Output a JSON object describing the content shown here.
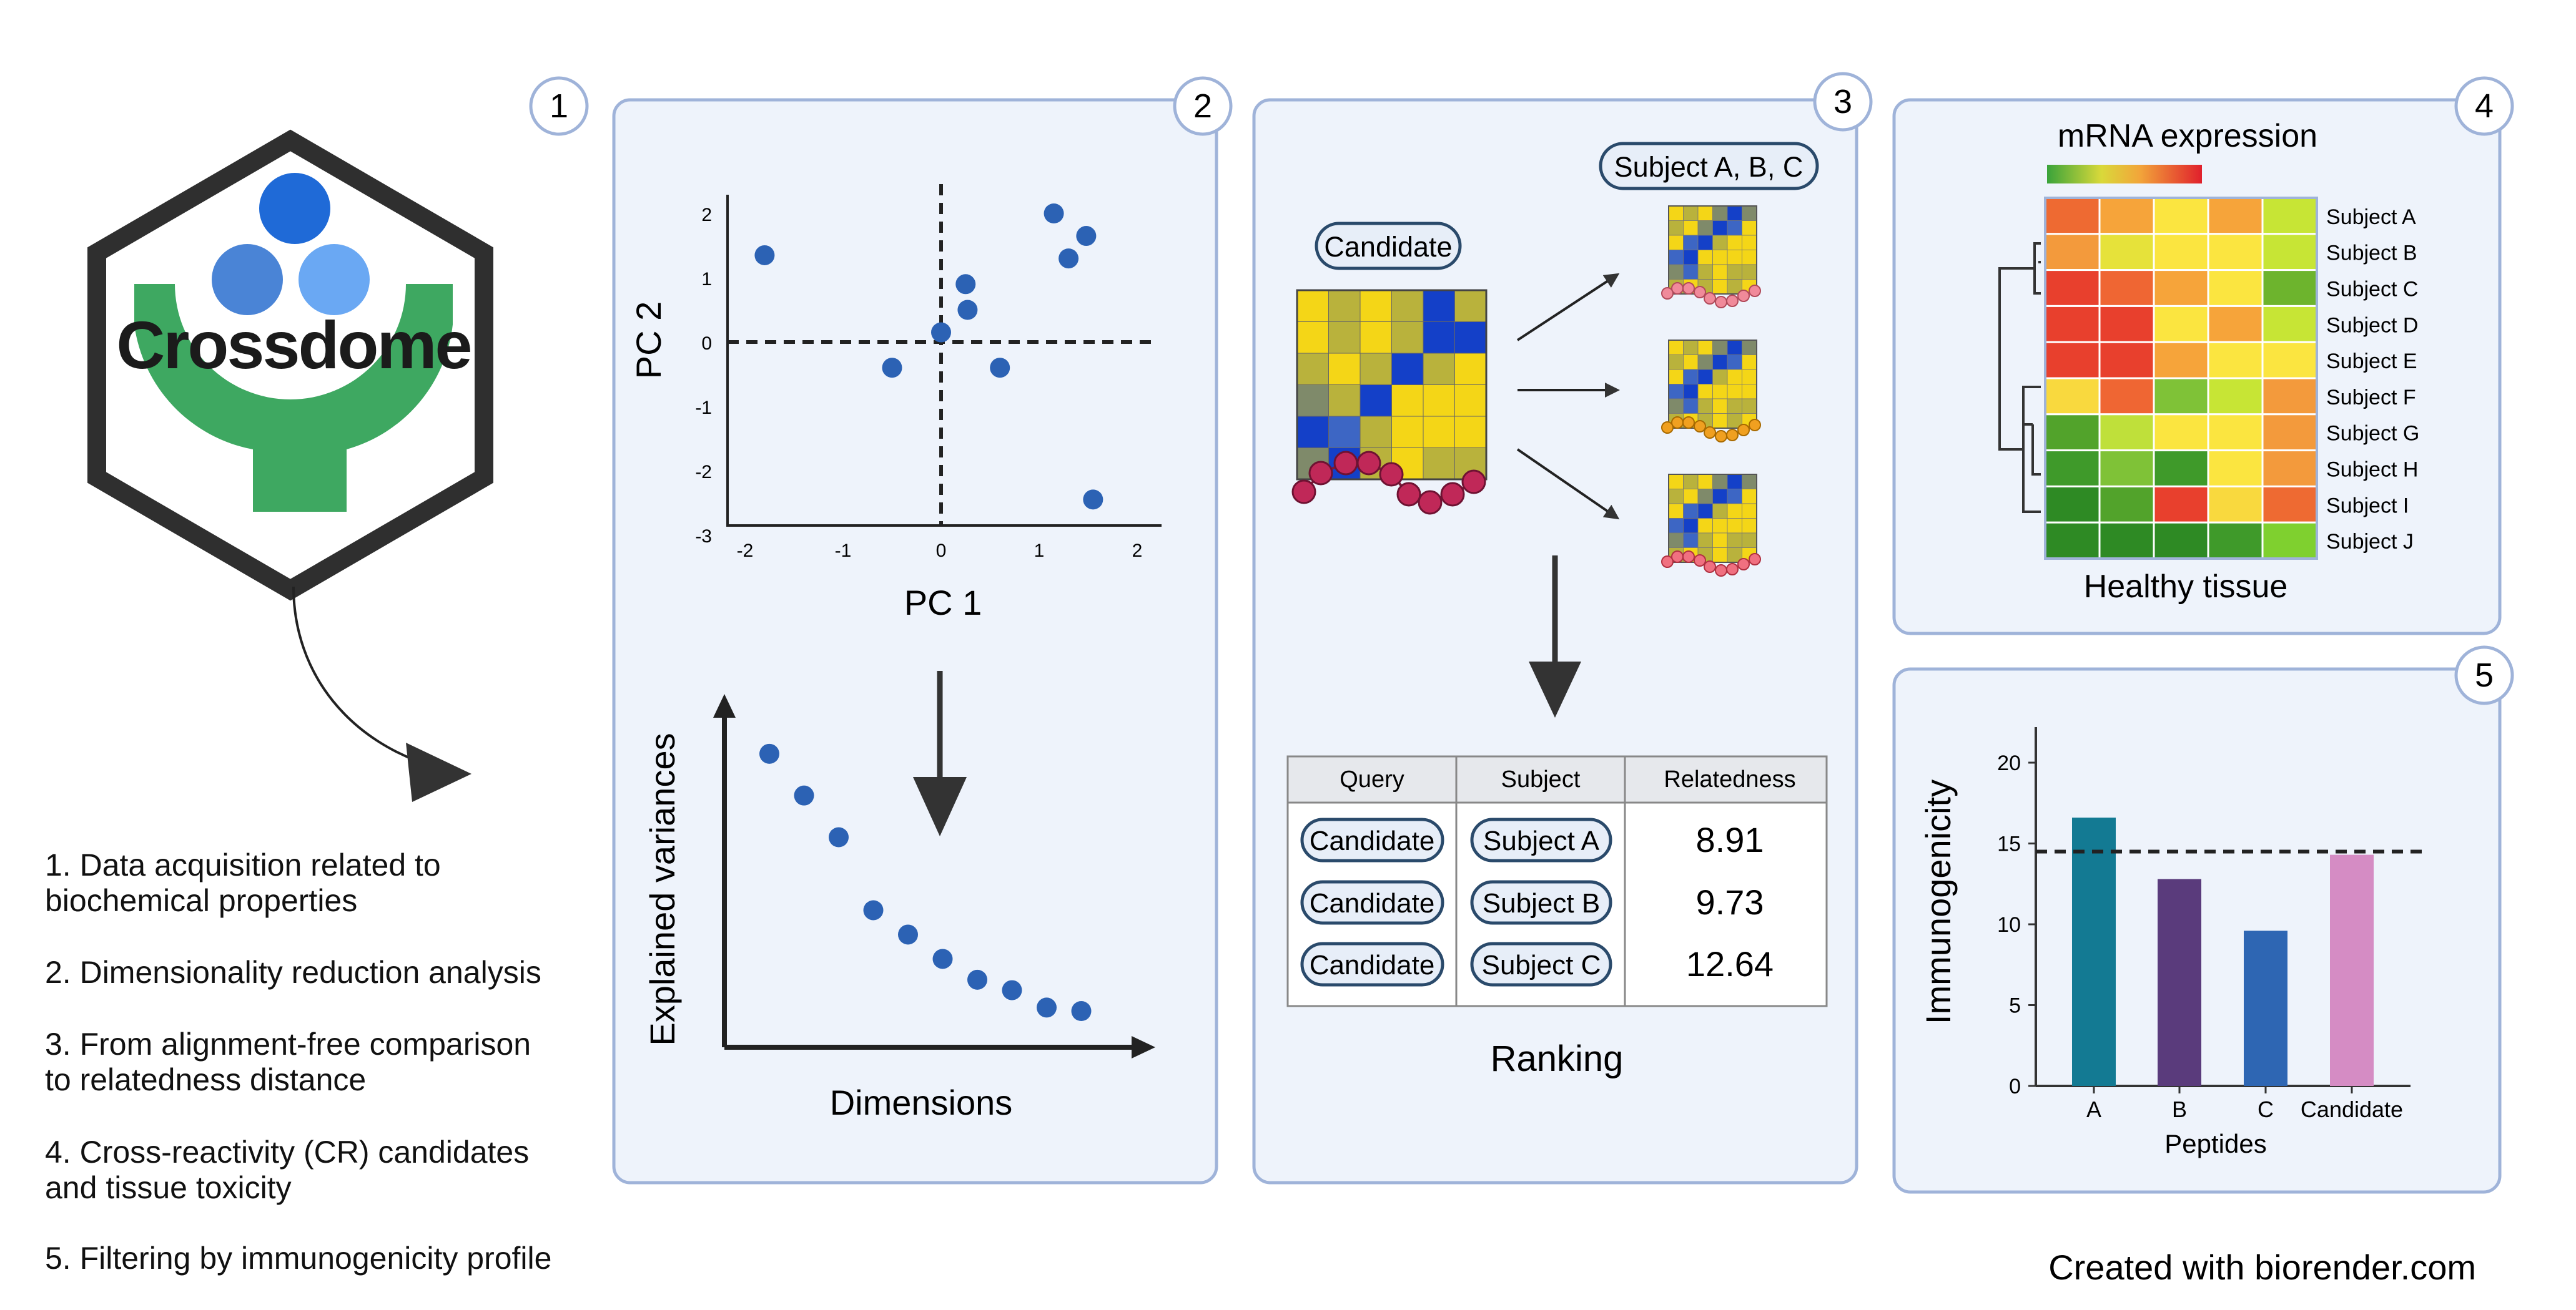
{
  "logo": {
    "name": "Crossdome"
  },
  "steps": [
    {
      "label": "1. Data acquisition related to",
      "label2": "biochemical properties"
    },
    {
      "label": "2. Dimensionality reduction analysis",
      "label2": ""
    },
    {
      "label": "3. From alignment-free comparison",
      "label2": "to relatedness distance"
    },
    {
      "label": "4. Cross-reactivity (CR) candidates",
      "label2": "and tissue toxicity"
    },
    {
      "label": "5. Filtering by immunogenicity profile",
      "label2": ""
    }
  ],
  "panel_numbers": [
    "1",
    "2",
    "3",
    "4",
    "5"
  ],
  "pca": {
    "xlabel": "PC 1",
    "ylabel": "PC 2",
    "x_ticks": [
      "-2",
      "-1",
      "0",
      "1",
      "2"
    ],
    "y_ticks": [
      "2",
      "1",
      "0",
      "-1",
      "-2",
      "-3"
    ],
    "points": [
      [
        -1.8,
        1.35
      ],
      [
        -0.5,
        -0.4
      ],
      [
        0.0,
        0.15
      ],
      [
        0.25,
        0.9
      ],
      [
        0.27,
        0.5
      ],
      [
        0.6,
        -0.4
      ],
      [
        1.15,
        2.0
      ],
      [
        1.3,
        1.3
      ],
      [
        1.48,
        1.65
      ],
      [
        1.55,
        -2.45
      ]
    ]
  },
  "scree": {
    "xlabel": "Dimensions",
    "ylabel": "Explained variances",
    "values": [
      10.0,
      8.8,
      7.6,
      5.5,
      4.8,
      4.1,
      3.5,
      3.2,
      2.7,
      2.6
    ]
  },
  "similarity": {
    "candidate_label": "Candidate",
    "subjects_label": "Subject A, B, C",
    "ranking_label": "Ranking",
    "colors": {
      "yellow": "#f4d617",
      "olive": "#b9b23c",
      "blue": "#1440c8",
      "midblue": "#3d66c4",
      "gray": "#7f8a6a"
    }
  },
  "table": {
    "headers": [
      "Query",
      "Subject",
      "Relatedness"
    ],
    "rows": [
      {
        "query": "Candidate",
        "subject": "Subject A",
        "value": "8.91"
      },
      {
        "query": "Candidate",
        "subject": "Subject B",
        "value": "9.73"
      },
      {
        "query": "Candidate",
        "subject": "Subject C",
        "value": "12.64"
      }
    ]
  },
  "heatmap": {
    "title": "mRNA expression",
    "footer": "Healthy tissue",
    "rows": [
      "Subject A",
      "Subject B",
      "Subject C",
      "Subject D",
      "Subject E",
      "Subject F",
      "Subject G",
      "Subject H",
      "Subject I",
      "Subject J"
    ],
    "cells": [
      [
        "#ee6a32",
        "#f6a43a",
        "#fbe540",
        "#f6a43a",
        "#c7e535"
      ],
      [
        "#f39a3c",
        "#e6e23a",
        "#fbe540",
        "#fbe540",
        "#c7e535"
      ],
      [
        "#e8402d",
        "#ef6633",
        "#f6a43a",
        "#fbe540",
        "#6db42d"
      ],
      [
        "#e8402d",
        "#e8402d",
        "#fbe540",
        "#f6a43a",
        "#c7e535"
      ],
      [
        "#e8402d",
        "#e8402d",
        "#f6a43a",
        "#fbe540",
        "#fbe540"
      ],
      [
        "#f9d93e",
        "#ef6633",
        "#7fc237",
        "#c7e535",
        "#f39a3c"
      ],
      [
        "#52a32b",
        "#bfe03a",
        "#fbe540",
        "#fbe540",
        "#f39a3c"
      ],
      [
        "#3f9a2a",
        "#7fc237",
        "#3f9a2a",
        "#fbe540",
        "#f39a3c"
      ],
      [
        "#2e8a24",
        "#52a32b",
        "#e8402d",
        "#f9d93e",
        "#ee6a32"
      ],
      [
        "#2e8a24",
        "#2e8a24",
        "#2e8a24",
        "#3f9a2a",
        "#7fd02f"
      ]
    ]
  },
  "chart_data": {
    "type": "bar",
    "categories": [
      "A",
      "B",
      "C",
      "Candidate"
    ],
    "values": [
      16.6,
      12.8,
      9.6,
      14.3
    ],
    "colors": [
      "#137a93",
      "#5a3b7c",
      "#2e66b3",
      "#d58cc4"
    ],
    "threshold": 14.5,
    "xlabel": "Peptides",
    "ylabel": "Immunogenicity",
    "ylim": [
      0,
      20
    ],
    "yticks": [
      "0",
      "5",
      "10",
      "15",
      "20"
    ]
  },
  "footer": {
    "credit": "Created with biorender.com"
  }
}
